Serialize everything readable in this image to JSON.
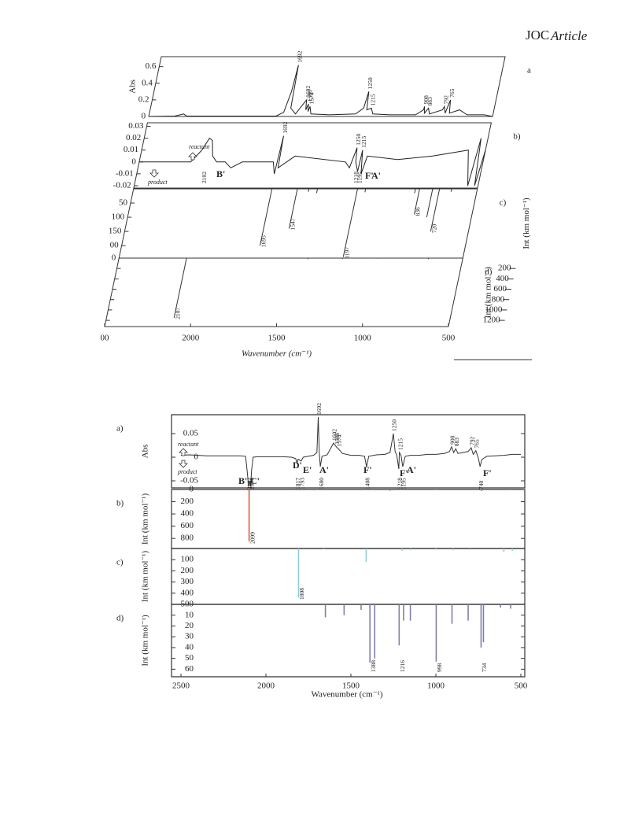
{
  "header": {
    "journal": "JOC",
    "section": "Article"
  },
  "figure1": {
    "x_axis": {
      "label": "Wavenumber (cm⁻¹)",
      "xlim": [
        2500,
        500
      ],
      "xticks": [
        {
          "value": 2500,
          "label": "00"
        },
        2000,
        1500,
        1000,
        500
      ]
    },
    "panels": [
      {
        "label": "a",
        "y_label": "Abs",
        "type": "line",
        "ylim": [
          0,
          0.72
        ],
        "yticks": [
          0,
          0.2,
          0.4,
          0.6
        ],
        "x": [
          2500,
          2350,
          2300,
          2280,
          2000,
          1760,
          1720,
          1700,
          1692,
          1684,
          1650,
          1602,
          1595,
          1586,
          1580,
          1574,
          1560,
          1450,
          1300,
          1260,
          1250,
          1240,
          1215,
          1200,
          1100,
          950,
          910,
          908,
          900,
          883,
          870,
          800,
          792,
          780,
          765,
          755,
          700,
          650,
          550,
          500
        ],
        "values": [
          0,
          0.005,
          0.03,
          0.005,
          0.005,
          0.005,
          0.05,
          0.3,
          0.62,
          0.1,
          0.03,
          0.2,
          0.08,
          0.15,
          0.06,
          0.12,
          0.03,
          0.02,
          0.03,
          0.1,
          0.3,
          0.08,
          0.1,
          0.03,
          0.02,
          0.02,
          0.08,
          0.12,
          0.04,
          0.1,
          0.03,
          0.08,
          0.12,
          0.04,
          0.2,
          0.04,
          0.08,
          0.02,
          0.02,
          0
        ],
        "peak_labels_up": [
          1692,
          1602,
          1586,
          1574,
          1250,
          1215,
          908,
          883,
          792,
          765
        ]
      },
      {
        "label": "b)",
        "type": "line",
        "ylim": [
          -0.022,
          0.033
        ],
        "yticks": [
          -0.02,
          -0.01,
          0,
          0.01,
          0.02,
          0.03
        ],
        "x": [
          2500,
          2200,
          2150,
          2120,
          2100,
          2080,
          2050,
          2000,
          1960,
          1900,
          1720,
          1700,
          1692,
          1685,
          1600,
          1300,
          1270,
          1250,
          1240,
          1218,
          1215,
          1195,
          1180,
          1000,
          800,
          600,
          560,
          540,
          520,
          500
        ],
        "values": [
          0,
          0,
          0.01,
          0.02,
          0.018,
          0.005,
          0,
          0,
          -0.005,
          0,
          0,
          -0.01,
          0.022,
          -0.005,
          0.005,
          0,
          -0.005,
          0.012,
          0,
          -0.008,
          0.01,
          -0.01,
          0.005,
          0.002,
          0.005,
          0.01,
          -0.02,
          0.02,
          -0.02,
          0.01
        ],
        "peak_labels_up": [
          1692,
          1250,
          1215
        ],
        "peak_labels_down": [
          2102,
          1218,
          1195
        ],
        "annotations": [
          "reactant",
          "product"
        ],
        "bands": [
          {
            "text": "B'",
            "color": "#9a5a6a"
          },
          {
            "text": "F'",
            "color": "#222222"
          },
          {
            "text": "A'",
            "color": "#3aa04a"
          }
        ]
      },
      {
        "label": "c)",
        "y_label": "Int (km mol⁻¹)",
        "type": "stick",
        "color": "#333333",
        "ylim": [
          0,
          244
        ],
        "yticks": [
          50,
          100,
          150,
          {
            "value": 200,
            "label": "00"
          }
        ],
        "x": [
          1695,
          1547,
          1480,
          1430,
          1197,
          1150,
          860,
          836,
          760,
          720,
          650
        ],
        "values": [
          200,
          140,
          10,
          15,
          240,
          12,
          15,
          90,
          100,
          150,
          10
        ],
        "peak_labels": [
          1695,
          1547,
          1197,
          836,
          720
        ]
      },
      {
        "label": "d)",
        "y_label": "Int (km mol⁻¹)",
        "type": "stick",
        "color": "#333333",
        "ylim": [
          0,
          1320
        ],
        "yticks": [
          0,
          200,
          400,
          600,
          800,
          1000,
          1200
        ],
        "x": [
          2107,
          1400,
          1200,
          1000,
          700
        ],
        "values": [
          1150,
          20,
          15,
          10,
          20
        ],
        "peak_labels": [
          2107
        ]
      }
    ]
  },
  "figure2": {
    "x_axis": {
      "label": "Wavenumber (cm⁻¹)",
      "xlim": [
        2500,
        500
      ],
      "xticks": [
        2500,
        2000,
        1500,
        1000,
        500
      ]
    },
    "panels": [
      {
        "label": "a)",
        "y_label": "Abs",
        "type": "line",
        "color": "#333333",
        "ylim": [
          -0.065,
          0.09
        ],
        "yticks": [
          -0.05,
          0,
          0.05
        ],
        "x": [
          2500,
          2450,
          2400,
          2350,
          2300,
          2250,
          2200,
          2150,
          2120,
          2110,
          2102,
          2095,
          2090,
          2085,
          2075,
          2050,
          2000,
          1950,
          1900,
          1850,
          1825,
          1817,
          1810,
          1793,
          1780,
          1750,
          1720,
          1700,
          1692,
          1686,
          1680,
          1670,
          1640,
          1602,
          1586,
          1574,
          1550,
          1500,
          1450,
          1420,
          1408,
          1395,
          1350,
          1300,
          1270,
          1250,
          1240,
          1230,
          1218,
          1215,
          1205,
          1195,
          1180,
          1150,
          1100,
          1050,
          1000,
          950,
          920,
          908,
          895,
          883,
          870,
          840,
          810,
          792,
          780,
          765,
          750,
          740,
          730,
          700,
          650,
          600,
          550,
          500
        ],
        "values": [
          0.004,
          0.005,
          0.004,
          0.003,
          0.003,
          0.003,
          0.003,
          0.003,
          0.002,
          -0.03,
          -0.062,
          -0.05,
          -0.062,
          -0.03,
          0,
          0.001,
          0.001,
          0.001,
          0.001,
          0,
          -0.003,
          -0.012,
          -0.004,
          -0.008,
          0,
          0.002,
          0.004,
          0.01,
          0.085,
          0.01,
          -0.02,
          0.002,
          0.005,
          0.03,
          0.022,
          0.018,
          0.008,
          0.004,
          0.004,
          0.002,
          -0.02,
          0.002,
          0.005,
          0.006,
          0.01,
          0.05,
          0.012,
          0.004,
          -0.025,
          0.01,
          0.004,
          -0.02,
          0.002,
          0.004,
          0.004,
          0.006,
          0.006,
          0.008,
          0.012,
          0.022,
          0.01,
          0.018,
          0.008,
          0.01,
          0.012,
          0.02,
          0.006,
          0.014,
          -0.002,
          -0.02,
          -0.005,
          0.002,
          0.003,
          0.004,
          0.006,
          0.006
        ],
        "peak_labels_up": [
          1692,
          1602,
          1586,
          1574,
          1250,
          1215,
          908,
          883,
          792,
          765
        ],
        "peak_labels_down": [
          2102,
          2090,
          1817,
          1793,
          1680,
          1408,
          1218,
          1195,
          740
        ],
        "annotations": [
          "reactant",
          "product"
        ],
        "bands": [
          {
            "text": "B'",
            "color": "#8b3fa0"
          },
          {
            "text": "C'",
            "color": "#e07b2a"
          },
          {
            "text": "D'",
            "color": "#3aa7a0"
          },
          {
            "text": "E'",
            "color": "#222222"
          },
          {
            "text": "A'",
            "color": "#3aa04a"
          },
          {
            "text": "F'",
            "color": "#222222"
          },
          {
            "text": "F'",
            "color": "#222222"
          },
          {
            "text": "A'",
            "color": "#3aa04a"
          },
          {
            "text": "F'",
            "color": "#222222"
          }
        ]
      },
      {
        "label": "b)",
        "y_label": "Int (km mol⁻¹)",
        "type": "stick",
        "color": "#d9603a",
        "ylim": [
          0,
          965
        ],
        "yticks": [
          0,
          200,
          400,
          600,
          800
        ],
        "x": [
          2099,
          1690,
          1270,
          1210,
          1000,
          730,
          560
        ],
        "values": [
          850,
          10,
          20,
          12,
          8,
          25,
          10
        ],
        "peak_labels": [
          2099
        ]
      },
      {
        "label": "c)",
        "y_label": "Int (km mol⁻¹)",
        "type": "stick",
        "color": "#8fcfd8",
        "ylim": [
          0,
          500
        ],
        "yticks": [
          100,
          200,
          300,
          400,
          500
        ],
        "x": [
          1808,
          1660,
          1410,
          1200,
          1150,
          1000,
          900,
          800,
          600,
          550
        ],
        "values": [
          440,
          8,
          120,
          20,
          15,
          10,
          15,
          12,
          30,
          20
        ],
        "peak_labels": [
          1808
        ]
      },
      {
        "label": "d)",
        "y_label": "Int (km mol⁻¹)",
        "type": "stick",
        "color": "#7f7fa8",
        "ylim": [
          0,
          67
        ],
        "yticks": [
          10,
          20,
          30,
          40,
          50,
          60
        ],
        "x": [
          2450,
          1650,
          1540,
          1440,
          1388,
          1360,
          1216,
          1190,
          1150,
          998,
          905,
          810,
          734,
          720,
          620,
          560
        ],
        "values": [
          1,
          12,
          10,
          5,
          54,
          50,
          38,
          15,
          15,
          53,
          18,
          15,
          40,
          35,
          3,
          4
        ],
        "peak_labels": [
          1388,
          1216,
          998,
          734
        ]
      }
    ]
  }
}
